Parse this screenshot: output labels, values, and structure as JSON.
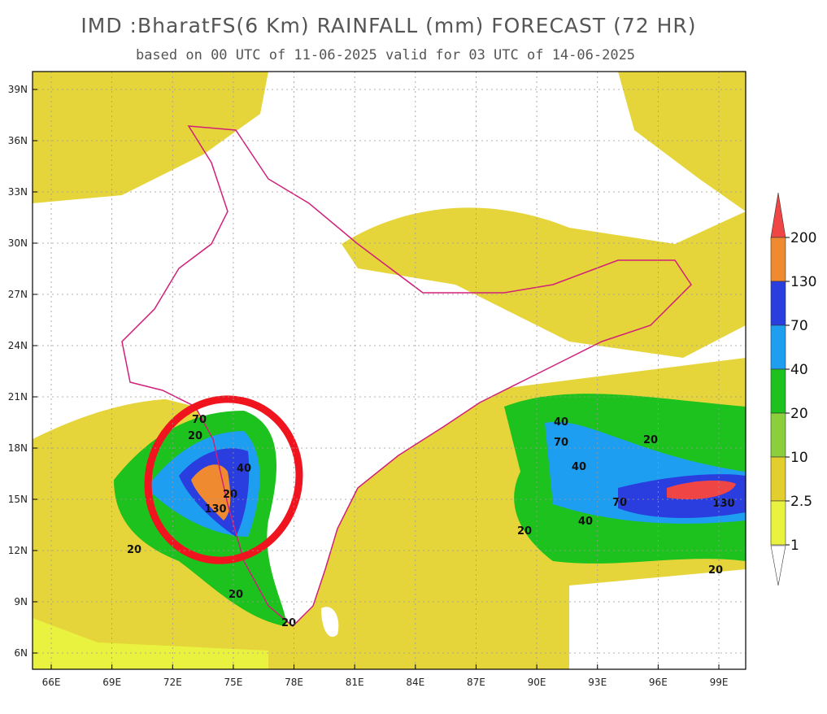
{
  "title": "IMD :BharatFS(6 Km) RAINFALL (mm) FORECAST (72 HR)",
  "subtitle": "based on 00 UTC of 11-06-2025 valid for 03 UTC of 14-06-2025",
  "lat_ticks": [
    "39N",
    "36N",
    "33N",
    "30N",
    "27N",
    "24N",
    "21N",
    "18N",
    "15N",
    "12N",
    "9N",
    "6N"
  ],
  "lon_ticks": [
    "66E",
    "69E",
    "72E",
    "75E",
    "78E",
    "81E",
    "84E",
    "87E",
    "90E",
    "93E",
    "96E",
    "99E"
  ],
  "legend": {
    "levels": [
      "200",
      "130",
      "70",
      "40",
      "20",
      "10",
      "2.5",
      "1"
    ],
    "colors": [
      "#f04545",
      "#f08a30",
      "#2a3ee0",
      "#1e9ef0",
      "#1ec21e",
      "#8ccf3c",
      "#e2cf2e",
      "#e9f23e"
    ]
  },
  "contour_labels": [
    "20",
    "40",
    "70",
    "20",
    "130",
    "20",
    "20",
    "40",
    "70",
    "40",
    "130",
    "40",
    "20",
    "70",
    "20",
    "20",
    "20"
  ]
}
